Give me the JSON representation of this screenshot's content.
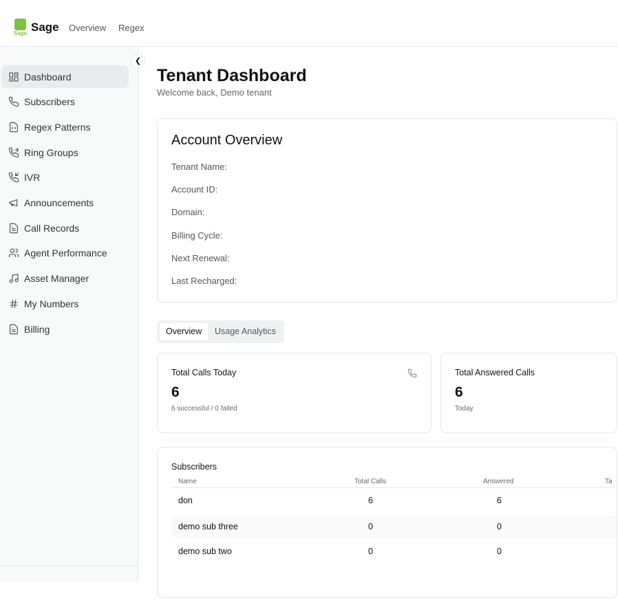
{
  "header": {
    "logo_text": "Sage",
    "brand": "Sage",
    "nav": [
      "Overview",
      "Regex"
    ]
  },
  "sidebar": {
    "items": [
      {
        "label": "Dashboard",
        "icon": "dashboard-icon"
      },
      {
        "label": "Subscribers",
        "icon": "phone-icon"
      },
      {
        "label": "Regex Patterns",
        "icon": "file-code-icon"
      },
      {
        "label": "Ring Groups",
        "icon": "phone-forward-icon"
      },
      {
        "label": "IVR",
        "icon": "phone-incoming-icon"
      },
      {
        "label": "Announcements",
        "icon": "megaphone-icon"
      },
      {
        "label": "Call Records",
        "icon": "file-text-icon"
      },
      {
        "label": "Agent Performance",
        "icon": "users-icon"
      },
      {
        "label": "Asset Manager",
        "icon": "music-icon"
      },
      {
        "label": "My Numbers",
        "icon": "hash-icon"
      },
      {
        "label": "Billing",
        "icon": "file-text-icon"
      }
    ]
  },
  "page": {
    "title": "Tenant Dashboard",
    "subtitle": "Welcome back, Demo tenant"
  },
  "account": {
    "title": "Account Overview",
    "fields": [
      "Tenant Name:",
      "Account ID:",
      "Domain:",
      "Billing Cycle:",
      "Next Renewal:",
      "Last Recharged:"
    ]
  },
  "tabs": [
    "Overview",
    "Usage Analytics"
  ],
  "stats": [
    {
      "label": "Total Calls Today",
      "value": "6",
      "sub": "6 successful / 0 failed"
    },
    {
      "label": "Total Answered Calls",
      "value": "6",
      "sub": "Today"
    }
  ],
  "subscribers": {
    "title": "Subscribers",
    "columns": [
      "Name",
      "Total Calls",
      "Answered",
      "Ta"
    ],
    "rows": [
      {
        "name": "don",
        "total": "6",
        "answered": "6"
      },
      {
        "name": "demo sub three",
        "total": "0",
        "answered": "0"
      },
      {
        "name": "demo sub two",
        "total": "0",
        "answered": "0"
      }
    ]
  },
  "colors": {
    "brand": "#7cc242",
    "active_bg": "#e9ebee"
  }
}
